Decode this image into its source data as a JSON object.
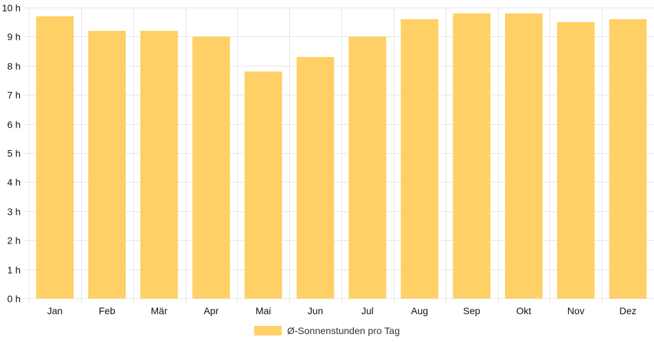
{
  "chart_data": {
    "type": "bar",
    "categories": [
      "Jan",
      "Feb",
      "Mär",
      "Apr",
      "Mai",
      "Jun",
      "Jul",
      "Aug",
      "Sep",
      "Okt",
      "Nov",
      "Dez"
    ],
    "series": [
      {
        "name": "Ø-Sonnenstunden pro Tag",
        "values": [
          9.7,
          9.2,
          9.2,
          9.0,
          7.8,
          8.3,
          9.0,
          9.6,
          9.8,
          9.8,
          9.5,
          9.6
        ],
        "color": "#FED066"
      }
    ],
    "y_unit_suffix": " h",
    "ylim": [
      0,
      10
    ],
    "y_ticks": [
      0,
      1,
      2,
      3,
      4,
      5,
      6,
      7,
      8,
      9,
      10
    ],
    "grid": true,
    "legend_position": "bottom"
  },
  "colors": {
    "bar": "#FED066",
    "grid": "#e6e6e6",
    "text": "#111111"
  }
}
